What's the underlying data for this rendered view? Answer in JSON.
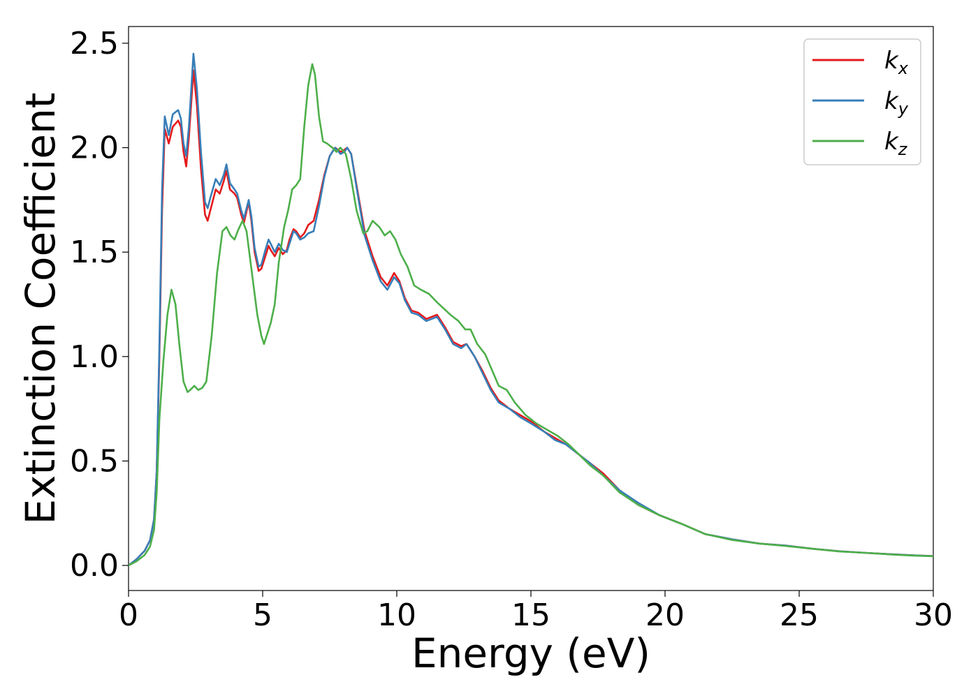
{
  "chart_data": {
    "type": "line",
    "title": "",
    "xlabel": "Energy (eV)",
    "ylabel": "Extinction Coefficient",
    "xlim": [
      0,
      30
    ],
    "ylim": [
      -0.12,
      2.58
    ],
    "xticks": [
      0,
      5,
      10,
      15,
      20,
      25,
      30
    ],
    "xtick_labels": [
      "0",
      "5",
      "10",
      "15",
      "20",
      "25",
      "30"
    ],
    "yticks": [
      0.0,
      0.5,
      1.0,
      1.5,
      2.0,
      2.5
    ],
    "ytick_labels": [
      "0.0",
      "0.5",
      "1.0",
      "1.5",
      "2.0",
      "2.5"
    ],
    "grid": false,
    "legend_position": "top-right",
    "series": [
      {
        "name": "k",
        "subscript": "x",
        "color": "#e41a1c",
        "points": [
          [
            0,
            0.0
          ],
          [
            0.3,
            0.03
          ],
          [
            0.6,
            0.07
          ],
          [
            0.8,
            0.12
          ],
          [
            0.95,
            0.22
          ],
          [
            1.05,
            0.45
          ],
          [
            1.15,
            1.0
          ],
          [
            1.25,
            1.7
          ],
          [
            1.35,
            2.09
          ],
          [
            1.5,
            2.02
          ],
          [
            1.65,
            2.1
          ],
          [
            1.85,
            2.13
          ],
          [
            1.95,
            2.1
          ],
          [
            2.05,
            1.98
          ],
          [
            2.15,
            1.91
          ],
          [
            2.25,
            2.05
          ],
          [
            2.42,
            2.37
          ],
          [
            2.55,
            2.2
          ],
          [
            2.7,
            1.9
          ],
          [
            2.85,
            1.68
          ],
          [
            2.95,
            1.65
          ],
          [
            3.05,
            1.7
          ],
          [
            3.25,
            1.8
          ],
          [
            3.4,
            1.78
          ],
          [
            3.55,
            1.84
          ],
          [
            3.65,
            1.89
          ],
          [
            3.78,
            1.8
          ],
          [
            3.95,
            1.78
          ],
          [
            4.05,
            1.76
          ],
          [
            4.2,
            1.68
          ],
          [
            4.3,
            1.64
          ],
          [
            4.48,
            1.74
          ],
          [
            4.58,
            1.65
          ],
          [
            4.7,
            1.5
          ],
          [
            4.85,
            1.41
          ],
          [
            4.95,
            1.42
          ],
          [
            5.1,
            1.48
          ],
          [
            5.22,
            1.53
          ],
          [
            5.3,
            1.51
          ],
          [
            5.45,
            1.48
          ],
          [
            5.6,
            1.52
          ],
          [
            5.75,
            1.49
          ],
          [
            5.9,
            1.51
          ],
          [
            6.0,
            1.56
          ],
          [
            6.15,
            1.61
          ],
          [
            6.25,
            1.6
          ],
          [
            6.4,
            1.57
          ],
          [
            6.55,
            1.59
          ],
          [
            6.7,
            1.63
          ],
          [
            6.9,
            1.65
          ],
          [
            7.1,
            1.75
          ],
          [
            7.3,
            1.87
          ],
          [
            7.5,
            1.96
          ],
          [
            7.7,
            2.0
          ],
          [
            7.9,
            1.98
          ],
          [
            8.05,
            1.99
          ],
          [
            8.15,
            2.0
          ],
          [
            8.3,
            1.97
          ],
          [
            8.5,
            1.82
          ],
          [
            8.8,
            1.6
          ],
          [
            9.1,
            1.48
          ],
          [
            9.4,
            1.38
          ],
          [
            9.65,
            1.34
          ],
          [
            9.9,
            1.4
          ],
          [
            10.1,
            1.36
          ],
          [
            10.3,
            1.28
          ],
          [
            10.55,
            1.22
          ],
          [
            10.8,
            1.21
          ],
          [
            11.1,
            1.18
          ],
          [
            11.5,
            1.2
          ],
          [
            11.8,
            1.14
          ],
          [
            12.1,
            1.07
          ],
          [
            12.4,
            1.05
          ],
          [
            12.6,
            1.06
          ],
          [
            12.9,
            1.0
          ],
          [
            13.2,
            0.93
          ],
          [
            13.5,
            0.85
          ],
          [
            13.8,
            0.79
          ],
          [
            14.2,
            0.75
          ],
          [
            14.6,
            0.72
          ],
          [
            15.0,
            0.69
          ],
          [
            15.5,
            0.64
          ],
          [
            15.9,
            0.61
          ],
          [
            16.3,
            0.58
          ],
          [
            16.8,
            0.53
          ],
          [
            17.2,
            0.49
          ],
          [
            17.7,
            0.44
          ],
          [
            18.3,
            0.36
          ],
          [
            19.0,
            0.29
          ],
          [
            19.8,
            0.24
          ],
          [
            20.6,
            0.2
          ],
          [
            21.5,
            0.15
          ],
          [
            22.5,
            0.125
          ],
          [
            23.5,
            0.105
          ],
          [
            24.5,
            0.095
          ],
          [
            25.5,
            0.08
          ],
          [
            26.5,
            0.068
          ],
          [
            27.5,
            0.06
          ],
          [
            28.5,
            0.053
          ],
          [
            29.3,
            0.048
          ],
          [
            30.0,
            0.045
          ]
        ]
      },
      {
        "name": "k",
        "subscript": "y",
        "color": "#377eb8",
        "points": [
          [
            0,
            0.0
          ],
          [
            0.3,
            0.03
          ],
          [
            0.6,
            0.07
          ],
          [
            0.8,
            0.12
          ],
          [
            0.95,
            0.22
          ],
          [
            1.05,
            0.45
          ],
          [
            1.15,
            1.05
          ],
          [
            1.25,
            1.8
          ],
          [
            1.35,
            2.15
          ],
          [
            1.5,
            2.06
          ],
          [
            1.65,
            2.16
          ],
          [
            1.85,
            2.18
          ],
          [
            1.95,
            2.14
          ],
          [
            2.05,
            2.02
          ],
          [
            2.15,
            1.96
          ],
          [
            2.25,
            2.1
          ],
          [
            2.42,
            2.45
          ],
          [
            2.55,
            2.28
          ],
          [
            2.7,
            1.98
          ],
          [
            2.85,
            1.74
          ],
          [
            2.95,
            1.71
          ],
          [
            3.05,
            1.76
          ],
          [
            3.25,
            1.85
          ],
          [
            3.4,
            1.82
          ],
          [
            3.55,
            1.87
          ],
          [
            3.65,
            1.92
          ],
          [
            3.78,
            1.83
          ],
          [
            3.95,
            1.8
          ],
          [
            4.05,
            1.78
          ],
          [
            4.2,
            1.7
          ],
          [
            4.3,
            1.66
          ],
          [
            4.48,
            1.75
          ],
          [
            4.58,
            1.67
          ],
          [
            4.7,
            1.52
          ],
          [
            4.85,
            1.43
          ],
          [
            4.95,
            1.44
          ],
          [
            5.1,
            1.51
          ],
          [
            5.22,
            1.56
          ],
          [
            5.3,
            1.54
          ],
          [
            5.45,
            1.5
          ],
          [
            5.6,
            1.54
          ],
          [
            5.75,
            1.51
          ],
          [
            5.9,
            1.5
          ],
          [
            6.0,
            1.54
          ],
          [
            6.15,
            1.6
          ],
          [
            6.25,
            1.59
          ],
          [
            6.4,
            1.56
          ],
          [
            6.55,
            1.57
          ],
          [
            6.7,
            1.59
          ],
          [
            6.9,
            1.6
          ],
          [
            7.1,
            1.72
          ],
          [
            7.3,
            1.86
          ],
          [
            7.5,
            1.96
          ],
          [
            7.7,
            2.0
          ],
          [
            7.9,
            1.97
          ],
          [
            8.05,
            1.98
          ],
          [
            8.15,
            2.0
          ],
          [
            8.3,
            1.97
          ],
          [
            8.5,
            1.81
          ],
          [
            8.8,
            1.58
          ],
          [
            9.1,
            1.46
          ],
          [
            9.4,
            1.36
          ],
          [
            9.65,
            1.32
          ],
          [
            9.9,
            1.38
          ],
          [
            10.1,
            1.35
          ],
          [
            10.3,
            1.27
          ],
          [
            10.55,
            1.21
          ],
          [
            10.8,
            1.2
          ],
          [
            11.1,
            1.17
          ],
          [
            11.5,
            1.19
          ],
          [
            11.8,
            1.13
          ],
          [
            12.1,
            1.06
          ],
          [
            12.4,
            1.04
          ],
          [
            12.6,
            1.06
          ],
          [
            12.9,
            1.0
          ],
          [
            13.2,
            0.92
          ],
          [
            13.5,
            0.84
          ],
          [
            13.8,
            0.78
          ],
          [
            14.2,
            0.75
          ],
          [
            14.6,
            0.71
          ],
          [
            15.0,
            0.68
          ],
          [
            15.5,
            0.64
          ],
          [
            15.9,
            0.6
          ],
          [
            16.3,
            0.58
          ],
          [
            16.8,
            0.53
          ],
          [
            17.2,
            0.49
          ],
          [
            17.7,
            0.43
          ],
          [
            18.3,
            0.36
          ],
          [
            19.0,
            0.3
          ],
          [
            19.8,
            0.24
          ],
          [
            20.6,
            0.2
          ],
          [
            21.5,
            0.15
          ],
          [
            22.5,
            0.125
          ],
          [
            23.5,
            0.105
          ],
          [
            24.5,
            0.095
          ],
          [
            25.5,
            0.08
          ],
          [
            26.5,
            0.068
          ],
          [
            27.5,
            0.06
          ],
          [
            28.5,
            0.053
          ],
          [
            29.3,
            0.048
          ],
          [
            30.0,
            0.045
          ]
        ]
      },
      {
        "name": "k",
        "subscript": "z",
        "color": "#4daf4a",
        "points": [
          [
            0,
            0.0
          ],
          [
            0.3,
            0.02
          ],
          [
            0.6,
            0.05
          ],
          [
            0.8,
            0.09
          ],
          [
            0.95,
            0.17
          ],
          [
            1.05,
            0.35
          ],
          [
            1.15,
            0.7
          ],
          [
            1.3,
            0.98
          ],
          [
            1.45,
            1.2
          ],
          [
            1.6,
            1.32
          ],
          [
            1.75,
            1.25
          ],
          [
            1.9,
            1.05
          ],
          [
            2.05,
            0.88
          ],
          [
            2.2,
            0.83
          ],
          [
            2.3,
            0.84
          ],
          [
            2.45,
            0.86
          ],
          [
            2.6,
            0.84
          ],
          [
            2.75,
            0.85
          ],
          [
            2.9,
            0.88
          ],
          [
            3.1,
            1.1
          ],
          [
            3.3,
            1.4
          ],
          [
            3.5,
            1.6
          ],
          [
            3.65,
            1.62
          ],
          [
            3.8,
            1.58
          ],
          [
            3.95,
            1.56
          ],
          [
            4.1,
            1.61
          ],
          [
            4.25,
            1.65
          ],
          [
            4.4,
            1.6
          ],
          [
            4.6,
            1.4
          ],
          [
            4.8,
            1.2
          ],
          [
            4.95,
            1.1
          ],
          [
            5.05,
            1.06
          ],
          [
            5.15,
            1.1
          ],
          [
            5.3,
            1.16
          ],
          [
            5.45,
            1.25
          ],
          [
            5.6,
            1.45
          ],
          [
            5.8,
            1.62
          ],
          [
            5.95,
            1.7
          ],
          [
            6.1,
            1.8
          ],
          [
            6.25,
            1.82
          ],
          [
            6.4,
            1.85
          ],
          [
            6.55,
            2.1
          ],
          [
            6.7,
            2.3
          ],
          [
            6.85,
            2.4
          ],
          [
            6.95,
            2.35
          ],
          [
            7.1,
            2.15
          ],
          [
            7.25,
            2.03
          ],
          [
            7.4,
            2.02
          ],
          [
            7.6,
            2.0
          ],
          [
            7.75,
            1.98
          ],
          [
            7.9,
            2.0
          ],
          [
            8.1,
            1.97
          ],
          [
            8.3,
            1.85
          ],
          [
            8.5,
            1.7
          ],
          [
            8.75,
            1.59
          ],
          [
            8.9,
            1.6
          ],
          [
            9.1,
            1.65
          ],
          [
            9.35,
            1.62
          ],
          [
            9.55,
            1.58
          ],
          [
            9.75,
            1.6
          ],
          [
            9.95,
            1.56
          ],
          [
            10.15,
            1.49
          ],
          [
            10.4,
            1.43
          ],
          [
            10.65,
            1.34
          ],
          [
            10.9,
            1.32
          ],
          [
            11.2,
            1.3
          ],
          [
            11.5,
            1.26
          ],
          [
            11.75,
            1.23
          ],
          [
            12.0,
            1.2
          ],
          [
            12.3,
            1.17
          ],
          [
            12.55,
            1.13
          ],
          [
            12.75,
            1.13
          ],
          [
            13.0,
            1.06
          ],
          [
            13.3,
            1.01
          ],
          [
            13.6,
            0.92
          ],
          [
            13.8,
            0.86
          ],
          [
            14.1,
            0.84
          ],
          [
            14.4,
            0.78
          ],
          [
            14.8,
            0.72
          ],
          [
            15.2,
            0.68
          ],
          [
            15.6,
            0.65
          ],
          [
            16.0,
            0.62
          ],
          [
            16.4,
            0.58
          ],
          [
            16.8,
            0.53
          ],
          [
            17.2,
            0.48
          ],
          [
            17.7,
            0.43
          ],
          [
            18.3,
            0.35
          ],
          [
            19.0,
            0.29
          ],
          [
            19.8,
            0.24
          ],
          [
            20.6,
            0.2
          ],
          [
            21.5,
            0.15
          ],
          [
            22.5,
            0.122
          ],
          [
            23.5,
            0.105
          ],
          [
            24.5,
            0.093
          ],
          [
            25.5,
            0.08
          ],
          [
            26.5,
            0.067
          ],
          [
            27.5,
            0.06
          ],
          [
            28.5,
            0.052
          ],
          [
            29.3,
            0.047
          ],
          [
            30.0,
            0.044
          ]
        ]
      }
    ]
  }
}
